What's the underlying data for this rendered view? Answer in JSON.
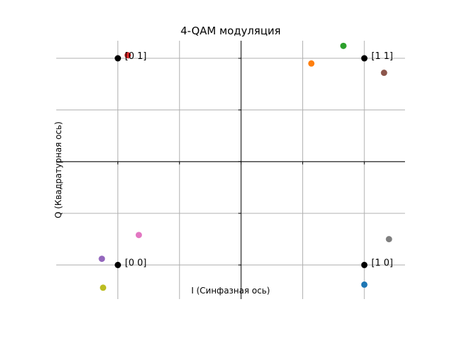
{
  "chart_data": {
    "type": "scatter",
    "title": "4-QAM модуляция",
    "xlabel": "I (Синфазная ось)",
    "ylabel": "Q (Квадратурная ось)",
    "xlim": [
      -1.5,
      1.33
    ],
    "ylim": [
      -1.33,
      1.17
    ],
    "grid": true,
    "ideal_points": {
      "color": "#000000",
      "points": [
        {
          "x": -1,
          "y": 1,
          "label": "[0 1]"
        },
        {
          "x": 1,
          "y": 1,
          "label": "[1 1]"
        },
        {
          "x": -1,
          "y": -1,
          "label": "[0 0]"
        },
        {
          "x": 1,
          "y": -1,
          "label": "[1 0]"
        }
      ]
    },
    "received_points": [
      {
        "x": 1.0,
        "y": -1.19,
        "color": "#1f77b4"
      },
      {
        "x": 0.57,
        "y": 0.95,
        "color": "#ff7f0e"
      },
      {
        "x": 0.83,
        "y": 1.12,
        "color": "#2ca02c"
      },
      {
        "x": -0.92,
        "y": 1.03,
        "color": "#d62728"
      },
      {
        "x": -1.13,
        "y": -0.94,
        "color": "#9467bd"
      },
      {
        "x": 1.16,
        "y": 0.86,
        "color": "#8c564b"
      },
      {
        "x": -0.83,
        "y": -0.71,
        "color": "#e377c2"
      },
      {
        "x": 1.2,
        "y": -0.75,
        "color": "#7f7f7f"
      },
      {
        "x": -1.12,
        "y": -1.22,
        "color": "#bcbd22"
      }
    ]
  }
}
